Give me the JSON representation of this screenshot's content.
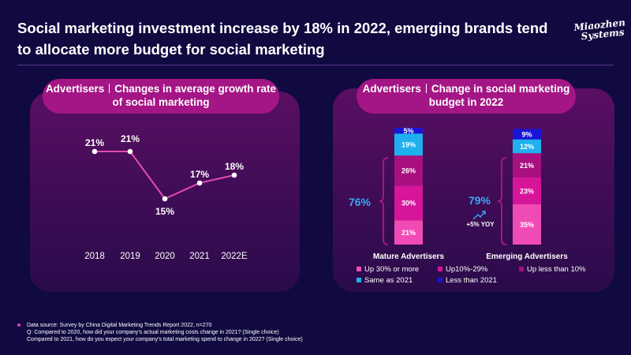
{
  "page": {
    "title": "Social marketing investment increase by 18% in 2022, emerging brands tend to allocate more budget for social marketing",
    "logo_line1": "Miaozhen",
    "logo_line2": "Systems"
  },
  "colors": {
    "background": "#100a40",
    "pill": "#a41585",
    "line": "#e44bb0",
    "seg_up30": "#f04bb4",
    "seg_up10_29": "#d6159a",
    "seg_upless10": "#a81080",
    "seg_same": "#1fb0ee",
    "seg_less": "#1a14d8",
    "accent_blue": "#3aa8f5"
  },
  "left_panel": {
    "title_part1": "Advertisers",
    "title_part2": "Changes in average growth rate of social marketing"
  },
  "right_panel": {
    "title_part1": "Advertisers",
    "title_part2": "Change in social marketing budget in 2022"
  },
  "chart_data": [
    {
      "type": "line",
      "title": "Advertisers | Changes in average growth rate of social marketing",
      "categories": [
        "2018",
        "2019",
        "2020",
        "2021",
        "2022E"
      ],
      "values": [
        21,
        21,
        15,
        17,
        18
      ],
      "labels": [
        "21%",
        "21%",
        "15%",
        "17%",
        "18%"
      ],
      "ylim": [
        10,
        25
      ],
      "grid": false
    },
    {
      "type": "bar",
      "stacked": true,
      "title": "Advertisers | Change in social marketing budget in 2022",
      "categories": [
        "Mature Advertisers",
        "Emerging Advertisers"
      ],
      "series": [
        {
          "name": "Up 30% or more",
          "values": [
            21,
            35
          ],
          "labels": [
            "21%",
            "35%"
          ]
        },
        {
          "name": "Up10%-29%",
          "values": [
            30,
            23
          ],
          "labels": [
            "30%",
            "23%"
          ]
        },
        {
          "name": "Up less than 10%",
          "values": [
            26,
            21
          ],
          "labels": [
            "26%",
            "21%"
          ]
        },
        {
          "name": "Same as 2021",
          "values": [
            19,
            12
          ],
          "labels": [
            "19%",
            "12%"
          ]
        },
        {
          "name": "Less than 2021",
          "values": [
            5,
            9
          ],
          "labels": [
            "5%",
            "9%"
          ]
        }
      ],
      "annotations": {
        "mature_total": "76%",
        "emerging_total": "79%",
        "yoy": "+5% YOY"
      },
      "legend": "bottom"
    }
  ],
  "footer": {
    "line1": "Data source: Survey by China Digital Marketing Trends Report 2022, n=270",
    "line2": "Q: Compared to 2020, how did your company’s actual marketing costs change in 2021? (Single choice)",
    "line3": "Compared to 2021, how do you expect your company’s total marketing spend to change in 2022? (Single choice)"
  }
}
